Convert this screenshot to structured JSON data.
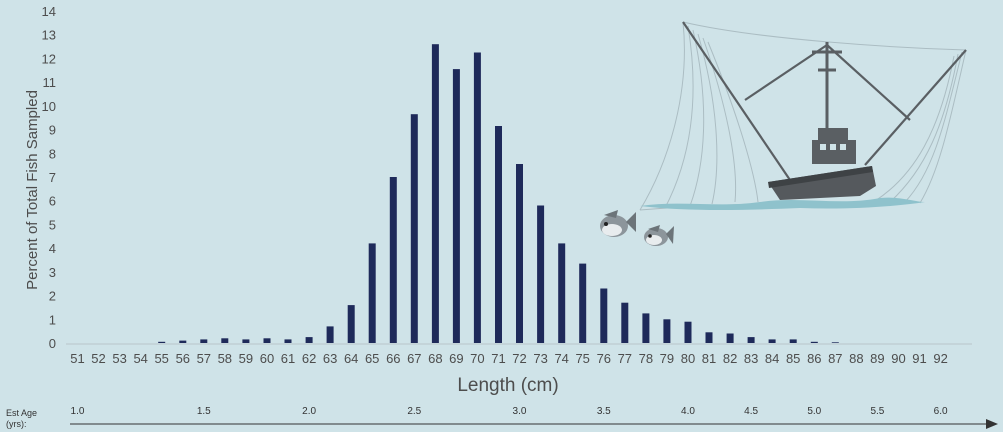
{
  "chart_data": {
    "type": "bar",
    "xlabel": "Length (cm)",
    "ylabel": "Percent of Total Fish Sampled",
    "ylim": [
      0,
      14
    ],
    "yticks": [
      0,
      1,
      2,
      3,
      4,
      5,
      6,
      7,
      8,
      9,
      10,
      11,
      12,
      13,
      14
    ],
    "grid": false,
    "bar_color": "#1e2a5a",
    "categories": [
      "51",
      "52",
      "53",
      "54",
      "55",
      "56",
      "57",
      "58",
      "59",
      "60",
      "61",
      "62",
      "63",
      "64",
      "65",
      "66",
      "67",
      "68",
      "69",
      "70",
      "71",
      "72",
      "73",
      "74",
      "75",
      "76",
      "77",
      "78",
      "79",
      "80",
      "81",
      "82",
      "83",
      "84",
      "85",
      "86",
      "87",
      "88",
      "89",
      "90",
      "91",
      "92"
    ],
    "values": [
      0,
      0,
      0,
      0,
      0.05,
      0.1,
      0.15,
      0.2,
      0.15,
      0.2,
      0.15,
      0.25,
      0.7,
      1.6,
      4.2,
      7.0,
      9.65,
      12.6,
      11.55,
      12.25,
      9.15,
      7.55,
      5.8,
      4.2,
      3.35,
      2.3,
      1.7,
      1.25,
      1.0,
      0.9,
      0.45,
      0.4,
      0.25,
      0.15,
      0.15,
      0.05,
      0.03,
      0,
      0,
      0,
      0,
      0
    ],
    "age_axis": {
      "label_line1": "Est Age",
      "label_line2": "(yrs):",
      "ticks": [
        {
          "label": "1.0",
          "at_length": 51
        },
        {
          "label": "1.5",
          "at_length": 57
        },
        {
          "label": "2.0",
          "at_length": 62
        },
        {
          "label": "2.5",
          "at_length": 67
        },
        {
          "label": "3.0",
          "at_length": 72
        },
        {
          "label": "3.5",
          "at_length": 76
        },
        {
          "label": "4.0",
          "at_length": 80
        },
        {
          "label": "4.5",
          "at_length": 83
        },
        {
          "label": "5.0",
          "at_length": 86
        },
        {
          "label": "5.5",
          "at_length": 89
        },
        {
          "label": "6.0",
          "at_length": 92
        }
      ]
    }
  },
  "colors": {
    "background": "#cfe3e8",
    "axis_text": "#4d4d4d",
    "boat": "#555a5e",
    "net": "#a8b9bf",
    "water": "#8fc2cc"
  },
  "decorations": {
    "illustration": "fishing-boat-with-net-and-fish-icon"
  }
}
